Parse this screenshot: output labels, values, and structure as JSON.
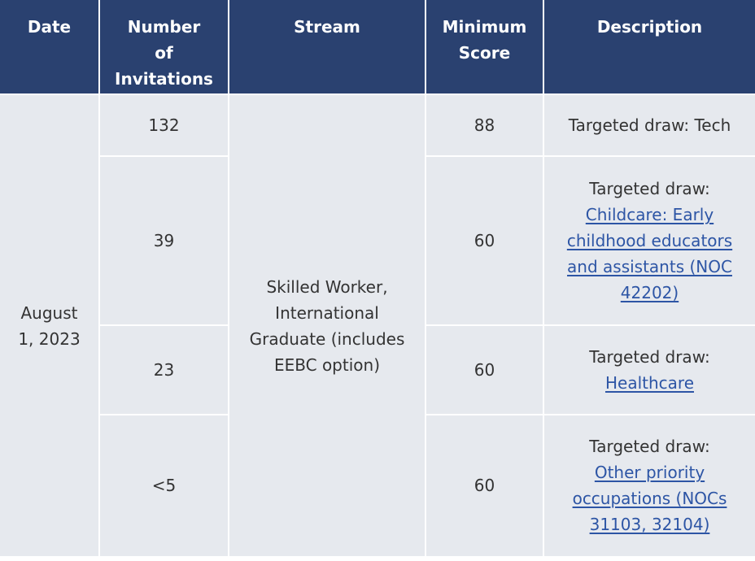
{
  "table": {
    "headers": {
      "date": [
        "Date"
      ],
      "invitations": [
        "Number",
        "of",
        "Invitations"
      ],
      "stream": [
        "Stream"
      ],
      "minimum_score": [
        "Minimum",
        "Score"
      ],
      "description": [
        "Description"
      ]
    },
    "date": [
      "August",
      "1, 2023"
    ],
    "stream": [
      "Skilled Worker,",
      "International",
      "Graduate (includes",
      "EEBC option)"
    ],
    "rows": [
      {
        "invitations": "132",
        "minimum_score": "88",
        "description_prefix": "Targeted draw: Tech",
        "description_link": []
      },
      {
        "invitations": "39",
        "minimum_score": "60",
        "description_prefix": "Targeted draw:",
        "description_link": [
          "Childcare: Early",
          "childhood educators",
          "and assistants (NOC",
          "42202)"
        ]
      },
      {
        "invitations": "23",
        "minimum_score": "60",
        "description_prefix": "Targeted draw:",
        "description_link": [
          "Healthcare"
        ]
      },
      {
        "invitations": "<5",
        "minimum_score": "60",
        "description_prefix": "Targeted draw:",
        "description_link": [
          "Other priority",
          "occupations (NOCs",
          "31103, 32104)"
        ]
      }
    ]
  },
  "colors": {
    "header_bg": "#2a4170",
    "cell_bg": "#e6e9ee",
    "link": "#2d55a5",
    "text": "#333333"
  }
}
